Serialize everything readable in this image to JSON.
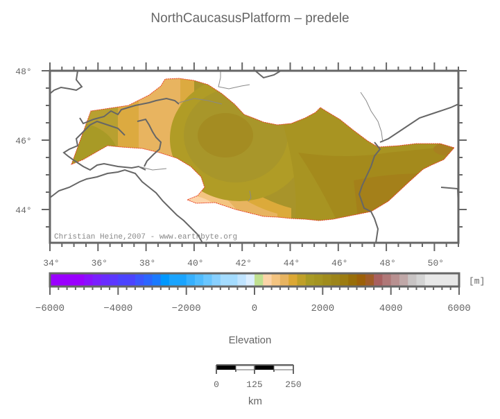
{
  "title": "NorthCaucasusPlatform – predele",
  "map": {
    "lon_range": [
      34,
      51
    ],
    "lat_range": [
      43.04,
      48
    ],
    "lon_ticks": [
      "34°",
      "36°",
      "38°",
      "40°",
      "42°",
      "44°",
      "46°",
      "48°",
      "50°"
    ],
    "lat_ticks": [
      "48°",
      "46°",
      "44°"
    ],
    "credit": "Christian Heine,2007 - www.earthbyte.org",
    "outline_color": "#e8402a",
    "coastline_color": "#666666"
  },
  "colorbar": {
    "label": "Elevation",
    "unit": "[m]",
    "tick_labels": [
      "−6000",
      "−4000",
      "−2000",
      "0",
      "2000",
      "4000",
      "6000"
    ],
    "range": [
      -6000,
      6000
    ],
    "colors": [
      "#9a00ff",
      "#9a00ff",
      "#9a00ff",
      "#9a00ff",
      "#8a10ff",
      "#7a20ff",
      "#6a2cff",
      "#5c38ff",
      "#4c44ff",
      "#4c44ff",
      "#3c56ff",
      "#2c66ff",
      "#1a7aff",
      "#0098ff",
      "#1aa4ff",
      "#1aa4ff",
      "#36b0ff",
      "#50bcff",
      "#6ac6ff",
      "#88d0ff",
      "#a4dcff",
      "#a4dcff",
      "#c0e4ff",
      "#dceeff",
      "#c0e090",
      "#fcd4a8",
      "#f4c480",
      "#e8b460",
      "#dca834",
      "#c0a028",
      "#a89a24",
      "#a49420",
      "#a08c1c",
      "#9c8418",
      "#9c7c10",
      "#986e08",
      "#9c6008",
      "#a05c28",
      "#a86060",
      "#b07878",
      "#b89090",
      "#c0a8a8",
      "#c8c4c4",
      "#d4d4d4",
      "#e8e8e8",
      "#e8e8e8",
      "#e8e8e8",
      "#e8e8e8"
    ]
  },
  "scalebar": {
    "tick_labels": [
      "0",
      "125",
      "250"
    ],
    "unit": "km"
  }
}
